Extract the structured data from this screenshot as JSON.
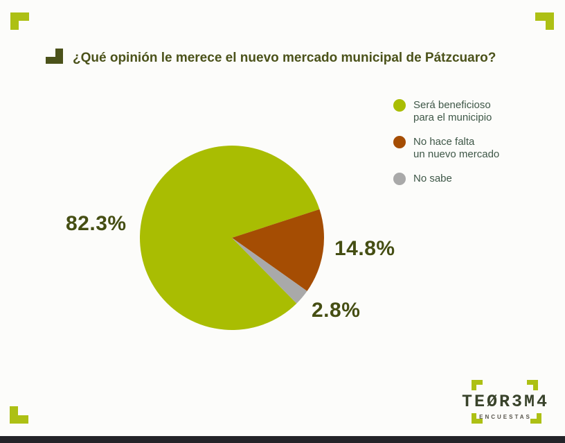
{
  "page": {
    "background": "#fcfcfa",
    "accent_lime": "#adc014",
    "bottom_bar_color": "#232328",
    "title": "¿Qué opinión le merece el nuevo mercado municipal de Pátzcuaro?",
    "title_color": "#4b521a"
  },
  "chart_data": {
    "type": "pie",
    "title": "¿Qué opinión le merece el nuevo mercado municipal de Pátzcuaro?",
    "start_angle_deg": 135.4,
    "clockwise": true,
    "legend_position": "right",
    "slices": [
      {
        "label": "Será beneficioso para el municipio",
        "value": 82.3,
        "display": "82.3%",
        "color": "#a9bd02"
      },
      {
        "label": "No hace falta un nuevo mercado",
        "value": 14.8,
        "display": "14.8%",
        "color": "#a54d03"
      },
      {
        "label": "No sabe",
        "value": 2.8,
        "display": "2.8%",
        "color": "#a9a9a9"
      }
    ]
  },
  "labels": {
    "green": "82.3%",
    "brown": "14.8%",
    "gray": "2.8%"
  },
  "legend": {
    "items": [
      {
        "line1": "Será beneficioso",
        "line2": "para el municipio",
        "color": "#a9bd02"
      },
      {
        "line1": "No hace falta",
        "line2": "un nuevo mercado",
        "color": "#a54d03"
      },
      {
        "line1": "No sabe",
        "line2": "",
        "color": "#a9a9a9"
      }
    ]
  },
  "logo": {
    "name": "TEØR3M4",
    "subtitle": "ENCUESTAS"
  }
}
